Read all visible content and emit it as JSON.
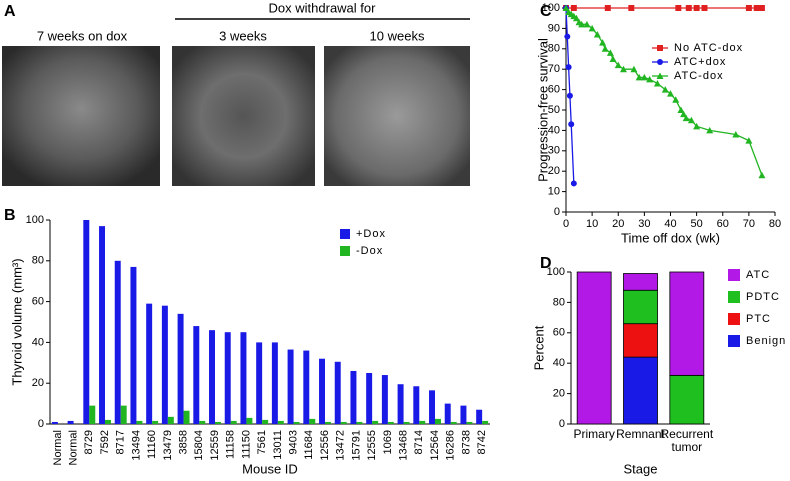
{
  "panel_labels": [
    "A",
    "B",
    "C",
    "D"
  ],
  "panel_a": {
    "header": "Dox withdrawal for",
    "captions": [
      "7 weeks on dox",
      "3 weeks",
      "10 weeks"
    ]
  },
  "chart_data": [
    {
      "type": "bar",
      "x_label": "Mouse ID",
      "y_label": "Thyroid volume (mm³)",
      "categories": [
        "Normal",
        "Normal",
        "8729",
        "7592",
        "8717",
        "13494",
        "11160",
        "13479",
        "3858",
        "15804",
        "12559",
        "11158",
        "11150",
        "7561",
        "13011",
        "9403",
        "11684",
        "12556",
        "13472",
        "15791",
        "12555",
        "1069",
        "13468",
        "8714",
        "12564",
        "16286",
        "8738",
        "8742"
      ],
      "series": [
        {
          "name": "+Dox",
          "color": "#1a1ae6",
          "values": [
            1,
            1.5,
            100,
            97,
            80,
            77,
            59,
            58,
            54,
            48,
            46,
            45,
            45,
            40,
            40,
            36.5,
            36,
            32,
            30.5,
            26,
            25,
            24,
            19.5,
            18.5,
            16.5,
            10,
            9,
            7
          ]
        },
        {
          "name": "-Dox",
          "color": "#22b522",
          "values": [
            0,
            0,
            9,
            2,
            9,
            1.5,
            1.5,
            3.5,
            6.5,
            1.5,
            1,
            1.5,
            3,
            2,
            1.5,
            1,
            2.5,
            1,
            1,
            1,
            1.5,
            1,
            1,
            1.5,
            2.5,
            1,
            1,
            1.5
          ]
        }
      ],
      "ylim": [
        0,
        100
      ],
      "yticks": [
        0,
        20,
        40,
        60,
        80,
        100
      ]
    },
    {
      "type": "line",
      "x_label": "Time off dox (wk)",
      "y_label": "Progression-free survival",
      "series": [
        {
          "name": "No ATC-dox",
          "color": "#e02020",
          "marker": "square",
          "x": [
            0,
            3,
            16,
            25,
            43,
            47,
            50,
            53,
            70,
            73,
            75
          ],
          "values": [
            100,
            100,
            100,
            100,
            100,
            100,
            100,
            100,
            100,
            100,
            100
          ]
        },
        {
          "name": "ATC+dox",
          "color": "#1a1ae6",
          "marker": "circle",
          "x": [
            0,
            0.5,
            1,
            1.5,
            2,
            3
          ],
          "values": [
            100,
            86,
            71,
            57,
            43,
            14
          ]
        },
        {
          "name": "ATC-dox",
          "color": "#22b522",
          "marker": "triangle",
          "x": [
            0,
            1,
            2,
            3,
            4,
            5,
            6,
            8,
            10,
            12,
            14,
            15,
            17,
            18,
            20,
            22,
            26,
            28,
            30,
            32,
            35,
            38,
            40,
            42,
            44,
            45,
            46,
            48,
            50,
            55,
            65,
            70,
            75
          ],
          "values": [
            100,
            98,
            97,
            96,
            95,
            93,
            92,
            92,
            90,
            87,
            83,
            80,
            78,
            75,
            72,
            70,
            70,
            66,
            66,
            65,
            63,
            60,
            58,
            55,
            50,
            48,
            46,
            45,
            42,
            40,
            38,
            35,
            18
          ]
        }
      ],
      "xlim": [
        0,
        80
      ],
      "xticks": [
        0,
        10,
        20,
        30,
        40,
        50,
        60,
        70,
        80
      ],
      "ylim": [
        0,
        100
      ],
      "yticks": [
        0,
        10,
        20,
        30,
        40,
        50,
        60,
        70,
        80,
        90,
        100
      ],
      "legend": "top-right"
    },
    {
      "type": "stacked_bar",
      "x_label": "Stage",
      "y_label": "Percent",
      "categories": [
        "Primary",
        "Remnant",
        "Recurrent tumor"
      ],
      "series": [
        {
          "name": "Benign",
          "color": "#1a1ae6",
          "values": [
            0,
            44,
            0
          ]
        },
        {
          "name": "PTC",
          "color": "#ee1111",
          "values": [
            0,
            22,
            0
          ]
        },
        {
          "name": "PDTC",
          "color": "#1fbf1f",
          "values": [
            0,
            22,
            32
          ]
        },
        {
          "name": "ATC",
          "color": "#b319e6",
          "values": [
            100,
            11,
            68
          ]
        }
      ],
      "ylim": [
        0,
        100
      ],
      "yticks": [
        0,
        20,
        40,
        60,
        80,
        100
      ],
      "legend": "right"
    }
  ]
}
